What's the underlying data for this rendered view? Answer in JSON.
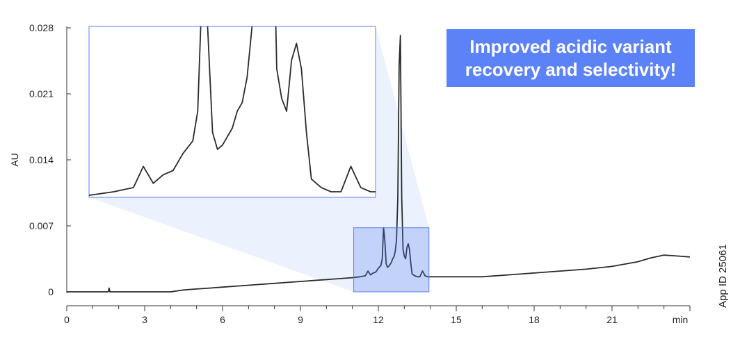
{
  "chart_data": {
    "type": "line",
    "title": "",
    "xlabel": "min",
    "ylabel": "AU",
    "xlim": [
      0,
      24
    ],
    "ylim": [
      0,
      0.028
    ],
    "x_ticks": [
      "0",
      "3",
      "6",
      "9",
      "12",
      "15",
      "18",
      "21"
    ],
    "y_ticks": [
      "0",
      "0.007",
      "0.014",
      "0.021",
      "0.028"
    ],
    "grid": false,
    "legend": "none",
    "colors": {
      "trace": "#2a2a2a",
      "zoom": "#5b82f6",
      "zoom_fill": "#dbe5fb",
      "callout": "#5b82f6"
    },
    "series": [
      {
        "x": [
          0,
          0.5,
          1,
          1.5,
          1.6,
          1.63,
          1.66,
          1.7,
          2,
          2.5,
          3,
          3.5,
          4,
          4.5,
          5,
          5.5,
          6,
          6.5,
          7,
          7.5,
          8,
          8.5,
          9,
          9.5,
          10,
          10.5,
          11,
          11.3,
          11.5,
          11.6,
          11.7,
          11.8,
          11.9,
          12.0,
          12.1,
          12.15,
          12.2,
          12.25,
          12.3,
          12.35,
          12.4,
          12.5,
          12.55,
          12.6,
          12.65,
          12.7,
          12.75,
          12.8,
          12.85,
          12.9,
          12.95,
          13.0,
          13.05,
          13.1,
          13.15,
          13.2,
          13.25,
          13.3,
          13.4,
          13.5,
          13.6,
          13.7,
          13.8,
          13.9,
          14.0,
          14.5,
          15,
          16,
          17,
          18,
          19,
          20,
          21,
          22,
          22.5,
          23,
          23.5,
          24
        ],
        "y": [
          0.0,
          0.0,
          0.0,
          0.0,
          0.0,
          0.0004,
          0.0,
          0.0,
          0.0,
          0.0,
          0.0,
          0.0,
          0.0,
          0.0002,
          0.0003,
          0.0004,
          0.0005,
          0.0006,
          0.0007,
          0.0008,
          0.0009,
          0.001,
          0.0011,
          0.0012,
          0.0013,
          0.0014,
          0.0015,
          0.0016,
          0.0017,
          0.0022,
          0.0018,
          0.002,
          0.0021,
          0.0025,
          0.0028,
          0.0035,
          0.0068,
          0.0055,
          0.003,
          0.0026,
          0.0027,
          0.0031,
          0.0035,
          0.0037,
          0.0043,
          0.0055,
          0.01,
          0.024,
          0.0272,
          0.01,
          0.0045,
          0.0038,
          0.0035,
          0.0047,
          0.0051,
          0.0045,
          0.003,
          0.0019,
          0.0017,
          0.0016,
          0.0016,
          0.0022,
          0.0017,
          0.0016,
          0.0016,
          0.0016,
          0.0016,
          0.0016,
          0.0018,
          0.002,
          0.0022,
          0.0024,
          0.0027,
          0.0032,
          0.0036,
          0.0039,
          0.0038,
          0.0037
        ]
      }
    ],
    "zoom_region": {
      "x_range": [
        11.05,
        13.95
      ],
      "y_range": [
        0,
        0.0068
      ]
    },
    "annotations": [
      "Improved acidic variant\nrecovery and selectivity!",
      "App ID 25061"
    ]
  }
}
